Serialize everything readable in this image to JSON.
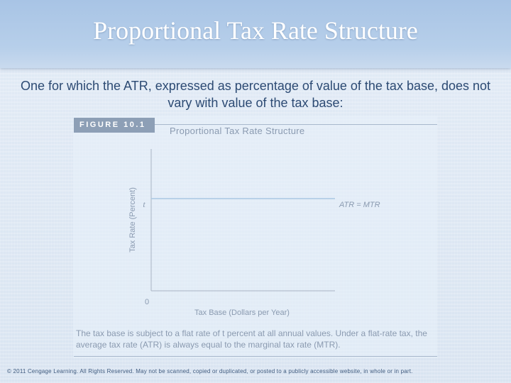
{
  "slide": {
    "title": "Proportional Tax Rate Structure",
    "subtitle": "One for which the ATR, expressed as percentage of value of the tax base, does not vary with value of the tax base:",
    "copyright": "© 2011 Cengage Learning. All Rights Reserved. May not be scanned, copied or duplicated, or posted to a publicly accessible website, in whole or in part."
  },
  "figure": {
    "label": "FIGURE 10.1",
    "title": "Proportional Tax Rate Structure",
    "caption": "The tax base is subject to a flat rate of t percent at all annual values. Under a flat-rate tax, the average tax rate (ATR) is always equal to the marginal tax rate (MTR)."
  },
  "colors": {
    "title_band": "#b7cfea",
    "subtitle_text": "#2c4a73",
    "figure_muted": "#8a9ab0",
    "rate_line": "#a9c7e2"
  },
  "chart_data": {
    "type": "line",
    "xlabel": "Tax Base (Dollars per Year)",
    "ylabel": "Tax Rate (Percent)",
    "origin_label": "0",
    "y_tick_labels": [
      "t"
    ],
    "grid": false,
    "series": [
      {
        "name": "ATR = MTR",
        "x": [
          0,
          1
        ],
        "y": [
          0.65,
          0.65
        ]
      }
    ],
    "xlim": [
      0,
      1
    ],
    "ylim": [
      0,
      1
    ]
  }
}
